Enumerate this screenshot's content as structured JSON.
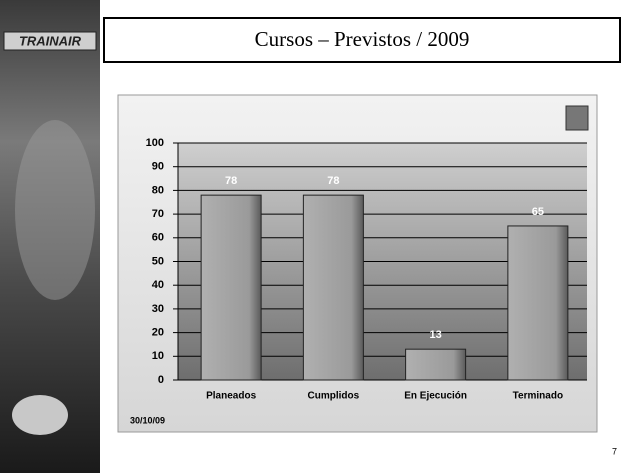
{
  "logo": "TRAINAIR",
  "page_number": "7",
  "title": "Cursos – Previstos / 2009",
  "chart_data": {
    "type": "bar",
    "categories": [
      "Planeados",
      "Cumplidos",
      "En Ejecución",
      "Terminado"
    ],
    "values": [
      78,
      78,
      13,
      65
    ],
    "color": "#9c9c9c",
    "ylim": [
      0,
      100
    ],
    "yticks": [
      0,
      10,
      20,
      30,
      40,
      50,
      60,
      70,
      80,
      90,
      100
    ],
    "grid": true,
    "date": "30/10/09"
  }
}
